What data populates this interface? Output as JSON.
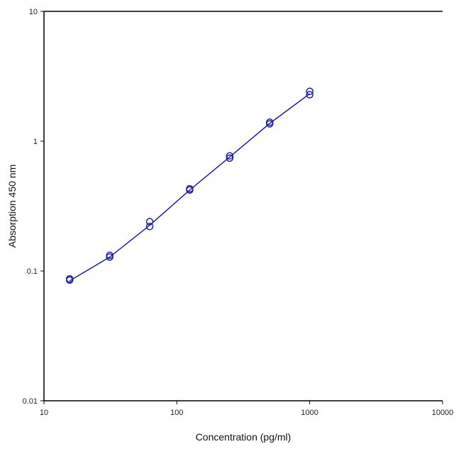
{
  "chart_data": {
    "type": "scatter",
    "xlabel": "Concentration (pg/ml)",
    "ylabel": "Absorption 450 nm",
    "x_scale": "log",
    "y_scale": "log",
    "xlim": [
      10,
      10000
    ],
    "ylim": [
      0.01,
      10
    ],
    "x_ticks": [
      10,
      100,
      1000,
      10000
    ],
    "x_tick_labels": [
      "10",
      "100",
      "1000",
      "10000"
    ],
    "y_ticks": [
      0.01,
      0.1,
      1,
      10
    ],
    "y_tick_labels": [
      "0.01",
      "0.1",
      "1",
      "10"
    ],
    "grid": false,
    "legend": "none",
    "series": [
      {
        "points": [
          [
            15.6,
            0.085
          ],
          [
            15.6,
            0.087
          ],
          [
            31.25,
            0.128
          ],
          [
            31.25,
            0.132
          ],
          [
            62.5,
            0.22
          ],
          [
            62.5,
            0.24
          ],
          [
            125,
            0.42
          ],
          [
            125,
            0.43
          ],
          [
            250,
            0.74
          ],
          [
            250,
            0.77
          ],
          [
            500,
            1.36
          ],
          [
            500,
            1.4
          ],
          [
            1000,
            2.28
          ],
          [
            1000,
            2.42
          ]
        ],
        "fit_curve": [
          [
            15.6,
            0.084
          ],
          [
            31.25,
            0.128
          ],
          [
            62.5,
            0.225
          ],
          [
            125,
            0.42
          ],
          [
            250,
            0.755
          ],
          [
            500,
            1.37
          ],
          [
            1000,
            2.32
          ]
        ]
      }
    ],
    "colors": {
      "series": "#1f1f9c",
      "axis": "#000000"
    }
  }
}
